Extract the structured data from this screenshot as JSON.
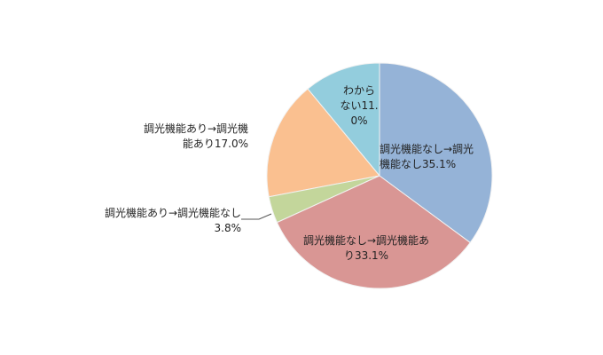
{
  "chart_data": {
    "type": "pie",
    "categories": [
      "調光機能なし→調光機能なし",
      "調光機能なし→調光機能あり",
      "調光機能あり→調光機能なし",
      "調光機能あり→調光機能あり",
      "わからない"
    ],
    "values": [
      35.1,
      33.1,
      3.8,
      17.0,
      11.0
    ],
    "value_labels": [
      "35.1%",
      "33.1%",
      "3.8%",
      "17.0%",
      "11.0%"
    ],
    "colors": [
      "#95b3d7",
      "#d99694",
      "#c3d69b",
      "#fac090",
      "#93cddd"
    ]
  }
}
